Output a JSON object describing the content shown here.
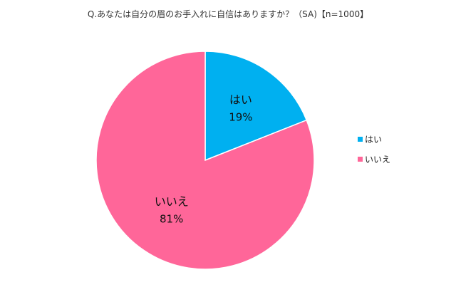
{
  "chart_data": {
    "type": "pie",
    "title": "Q.あなたは自分の眉のお手入れに自信はありますか？（SA)【n=1000】",
    "categories": [
      "はい",
      "いいえ"
    ],
    "values": [
      19,
      81
    ],
    "value_labels": [
      "19%",
      "81%"
    ],
    "colors": [
      "#00b0f0",
      "#ff6699"
    ],
    "legend": {
      "position": "right",
      "items": [
        "はい",
        "いいえ"
      ]
    }
  }
}
